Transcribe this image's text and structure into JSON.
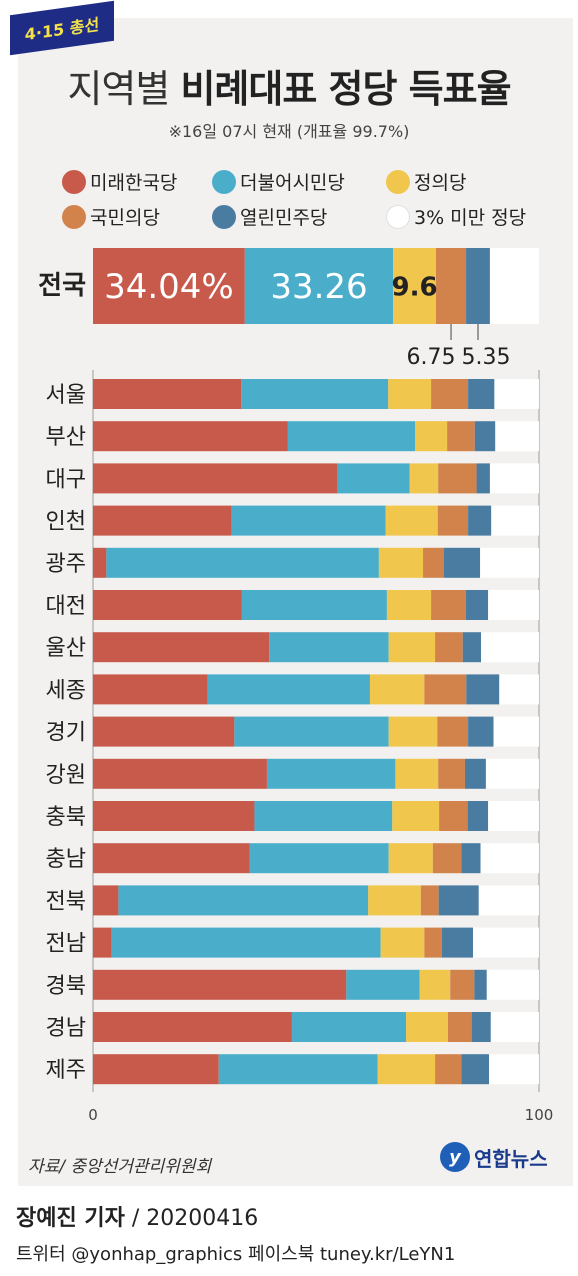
{
  "header": {
    "badge": "4·15 총선",
    "title_prefix": "지역별",
    "title_bold": "비례대표 정당 득표율",
    "subtitle": "※16일 07시 현재 (개표율 99.7%)"
  },
  "legend": [
    {
      "label": "미래한국당",
      "color": "#c85a4c"
    },
    {
      "label": "더불어시민당",
      "color": "#4aaecb"
    },
    {
      "label": "정의당",
      "color": "#f1c64c"
    },
    {
      "label": "국민의당",
      "color": "#d2834c"
    },
    {
      "label": "열린민주당",
      "color": "#4a7ca2"
    },
    {
      "label": "3% 미만 정당",
      "color": "#ffffff"
    }
  ],
  "chart_data": {
    "type": "bar",
    "orientation": "horizontal",
    "stacked": true,
    "xlim": [
      0,
      100
    ],
    "x_ticks": [
      "0",
      "100"
    ],
    "series": [
      {
        "name": "미래한국당",
        "color": "#c85a4c"
      },
      {
        "name": "더불어시민당",
        "color": "#4aaecb"
      },
      {
        "name": "정의당",
        "color": "#f1c64c"
      },
      {
        "name": "국민의당",
        "color": "#d2834c"
      },
      {
        "name": "열린민주당",
        "color": "#4a7ca2"
      },
      {
        "name": "3% 미만 정당",
        "color": "#ffffff"
      }
    ],
    "national": {
      "label": "전국",
      "values": [
        34.04,
        33.26,
        9.6,
        6.75,
        5.35
      ],
      "value_labels": [
        "34.04%",
        "33.26",
        "9.6",
        "6.75",
        "5.35"
      ]
    },
    "regions": [
      {
        "label": "서울",
        "values": [
          33.2,
          33.0,
          9.6,
          8.3,
          5.9
        ]
      },
      {
        "label": "부산",
        "values": [
          43.7,
          28.5,
          7.2,
          6.2,
          4.6
        ]
      },
      {
        "label": "대구",
        "values": [
          54.8,
          16.2,
          6.4,
          8.6,
          3.0
        ]
      },
      {
        "label": "인천",
        "values": [
          31.1,
          34.5,
          11.7,
          6.8,
          5.2
        ]
      },
      {
        "label": "광주",
        "values": [
          3.0,
          61.1,
          9.9,
          4.7,
          8.1
        ]
      },
      {
        "label": "대전",
        "values": [
          33.3,
          32.6,
          9.9,
          7.8,
          5.0
        ]
      },
      {
        "label": "울산",
        "values": [
          39.5,
          26.8,
          10.4,
          6.2,
          4.1
        ]
      },
      {
        "label": "세종",
        "values": [
          25.7,
          36.4,
          12.2,
          9.4,
          7.4
        ]
      },
      {
        "label": "경기",
        "values": [
          31.7,
          34.6,
          10.9,
          6.9,
          5.7
        ]
      },
      {
        "label": "강원",
        "values": [
          39.0,
          28.8,
          9.6,
          6.0,
          4.7
        ]
      },
      {
        "label": "충북",
        "values": [
          36.2,
          30.9,
          10.5,
          6.4,
          4.6
        ]
      },
      {
        "label": "충남",
        "values": [
          35.1,
          31.2,
          9.9,
          6.4,
          4.3
        ]
      },
      {
        "label": "전북",
        "values": [
          5.7,
          56.0,
          11.8,
          4.0,
          9.0
        ]
      },
      {
        "label": "전남",
        "values": [
          4.2,
          60.3,
          9.8,
          3.9,
          7.0
        ]
      },
      {
        "label": "경북",
        "values": [
          56.8,
          16.4,
          6.9,
          5.4,
          2.8
        ]
      },
      {
        "label": "경남",
        "values": [
          44.6,
          25.6,
          9.4,
          5.3,
          4.3
        ]
      },
      {
        "label": "제주",
        "values": [
          28.2,
          35.6,
          12.9,
          5.9,
          6.2
        ]
      }
    ]
  },
  "footer": {
    "source": "자료/ 중앙선거관리위원회",
    "logo_text": "연합뉴스",
    "reporter": "장예진 기자",
    "date": "/ 20200416",
    "social": "트위터 @yonhap_graphics  페이스북 tuney.kr/LeYN1"
  }
}
